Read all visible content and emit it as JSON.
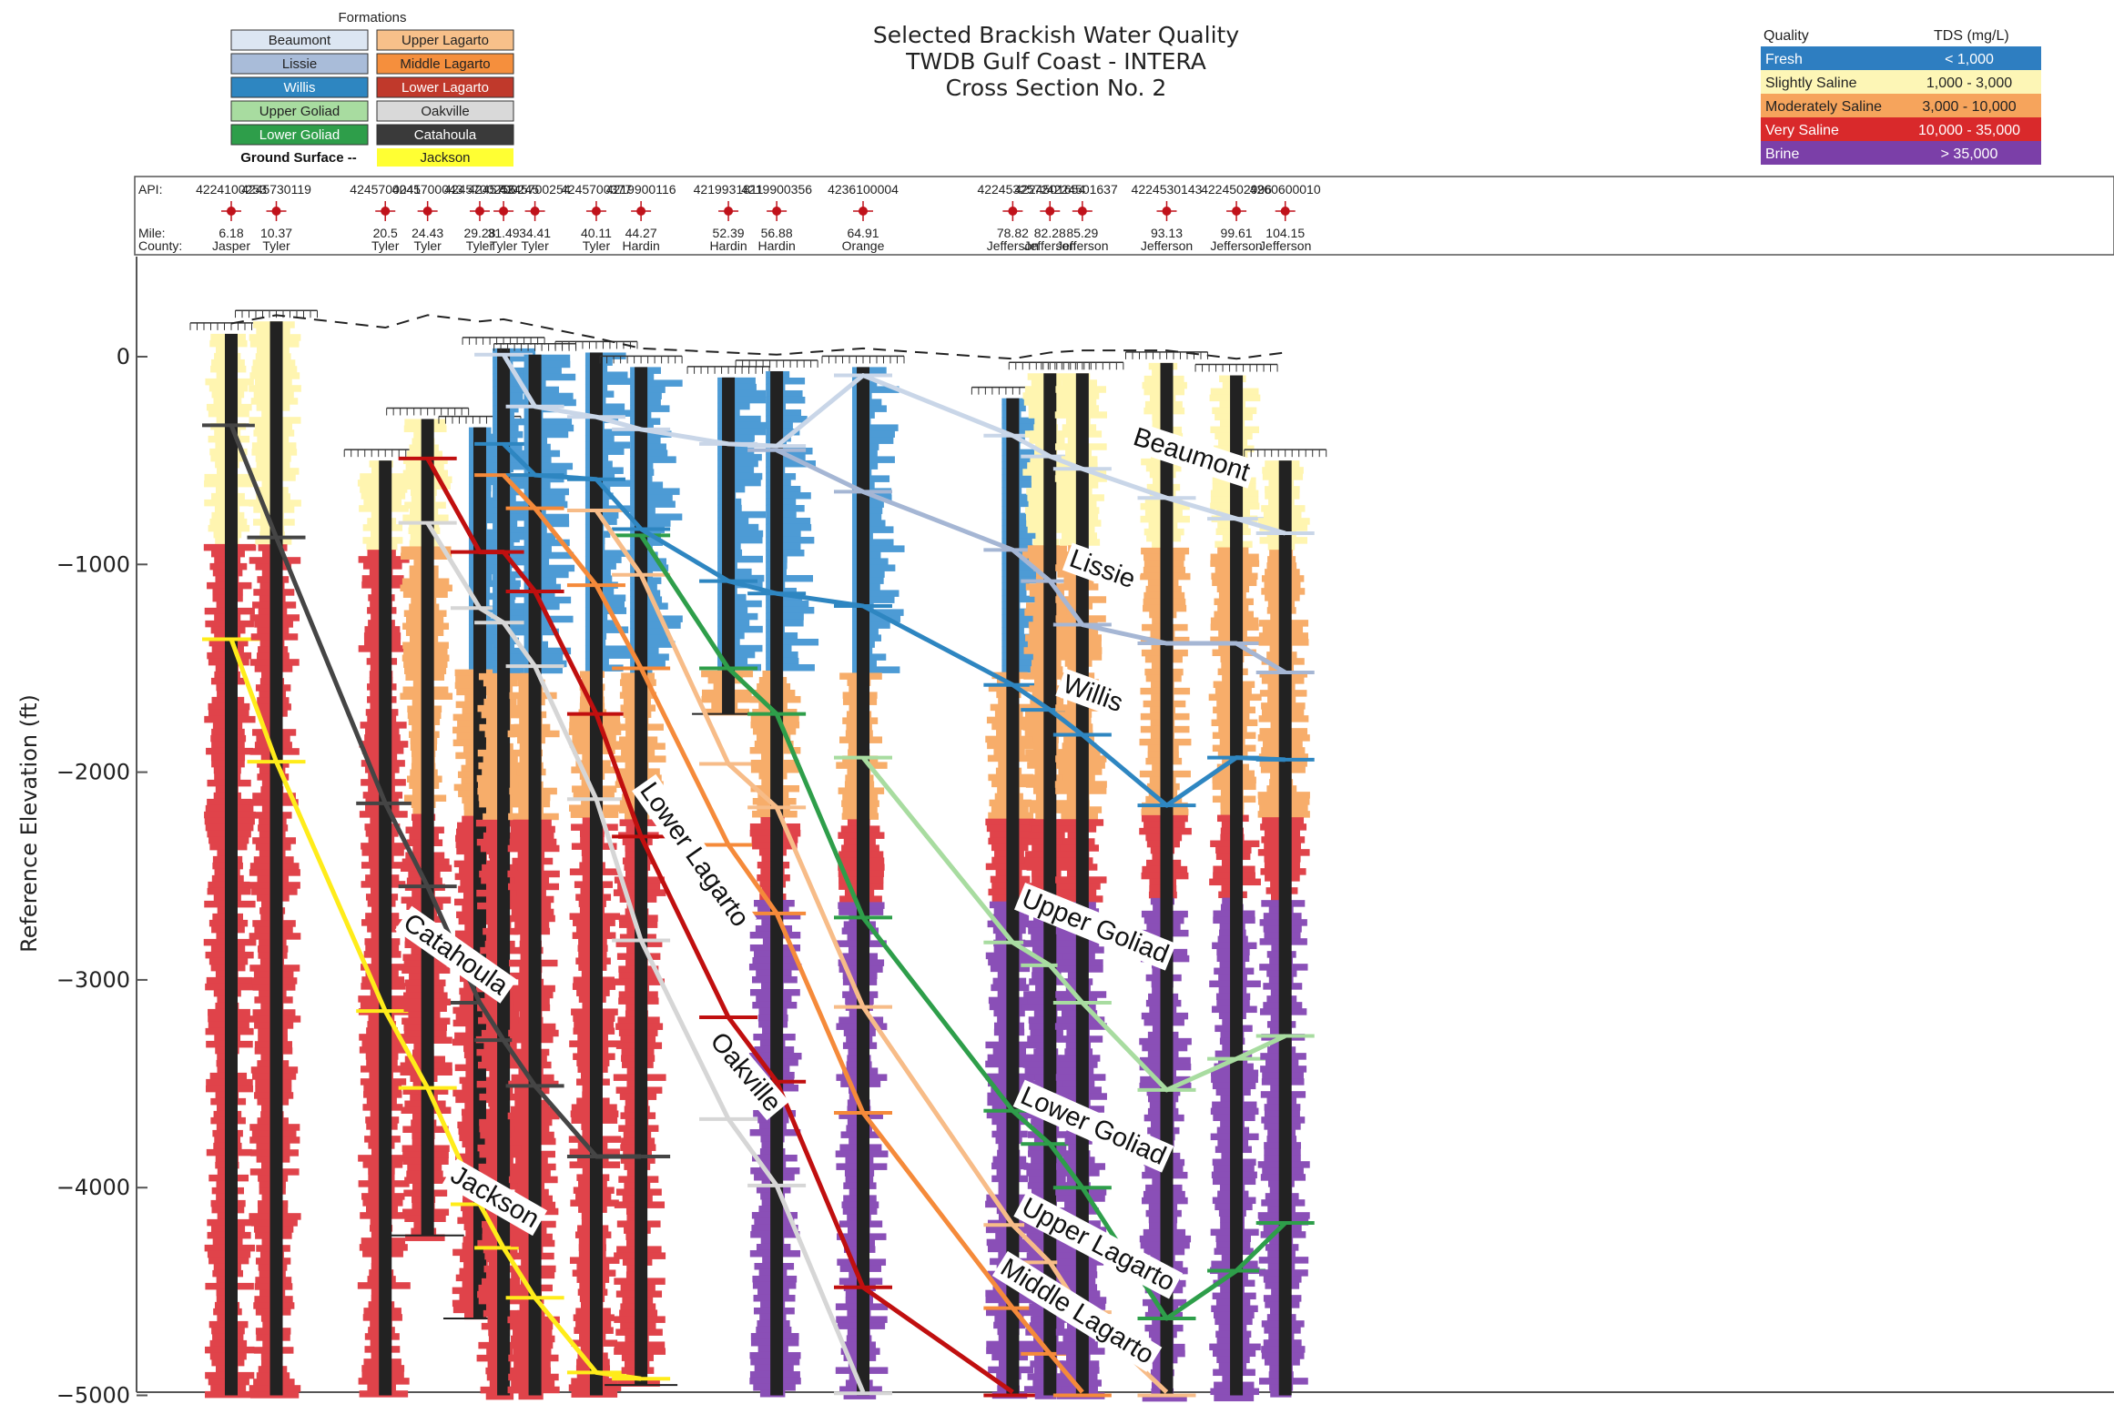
{
  "chart_data": {
    "type": "line",
    "title": [
      "Selected Brackish Water Quality",
      "TWDB Gulf Coast - INTERA",
      "Cross Section No. 2"
    ],
    "ylabel": "Reference Elevation (ft)",
    "ylim": [
      -5000,
      650
    ],
    "yticks": [
      0,
      -1000,
      -2000,
      -3000,
      -4000,
      -5000
    ],
    "ytick_labels": [
      "0",
      "−1000",
      "−2000",
      "−3000",
      "−4000",
      "−5000"
    ],
    "grid": false,
    "header_labels": {
      "api": "API:",
      "mile": "Mile:",
      "county": "County:"
    },
    "wells": [
      {
        "api": "4224100253",
        "mile": "6.18",
        "county": "Jasper",
        "top": 110,
        "bottom": -5000
      },
      {
        "api": "4245730119",
        "mile": "10.37",
        "county": "Tyler",
        "top": 170,
        "bottom": -5000
      },
      {
        "api": "4245700041",
        "mile": "20.5",
        "county": "Tyler",
        "top": -500,
        "bottom": -5000
      },
      {
        "api": "4245700043",
        "mile": "24.43",
        "county": "Tyler",
        "top": -300,
        "bottom": -4230
      },
      {
        "api": "4245700256",
        "mile": "29.28",
        "county": "Tyler",
        "top": -340,
        "bottom": -4630
      },
      {
        "api": "4245700245",
        "mile": "31.49",
        "county": "Tyler",
        "top": 40,
        "bottom": -5000
      },
      {
        "api": "4245700254",
        "mile": "34.41",
        "county": "Tyler",
        "top": 10,
        "bottom": -5000
      },
      {
        "api": "4245700377",
        "mile": "40.11",
        "county": "Tyler",
        "top": 20,
        "bottom": -5000
      },
      {
        "api": "4219900116",
        "mile": "44.27",
        "county": "Hardin",
        "top": -50,
        "bottom": -4950
      },
      {
        "api": "4219931811",
        "mile": "52.39",
        "county": "Hardin",
        "top": -100,
        "bottom": -1720
      },
      {
        "api": "4219900356",
        "mile": "56.88",
        "county": "Hardin",
        "top": -70,
        "bottom": -5000
      },
      {
        "api": "4236100004",
        "mile": "64.91",
        "county": "Orange",
        "top": -50,
        "bottom": -5000
      },
      {
        "api": "4224532572",
        "mile": "78.82",
        "county": "Jefferson",
        "top": -200,
        "bottom": -5000
      },
      {
        "api": "4224501654",
        "mile": "82.28",
        "county": "Jefferson",
        "top": -80,
        "bottom": -5000
      },
      {
        "api": "4224501637",
        "mile": "85.29",
        "county": "Jefferson",
        "top": -80,
        "bottom": -5000
      },
      {
        "api": "4224530143",
        "mile": "93.13",
        "county": "Jefferson",
        "top": -30,
        "bottom": -5000
      },
      {
        "api": "4224502996",
        "mile": "99.61",
        "county": "Jefferson",
        "top": -90,
        "bottom": -5000
      },
      {
        "api": "4260600010",
        "mile": "104.15",
        "county": "Jefferson",
        "top": -500,
        "bottom": -5000
      }
    ],
    "ground_surface": [
      160,
      200,
      140,
      200,
      170,
      180,
      150,
      90,
      40,
      20,
      10,
      40,
      -10,
      20,
      30,
      30,
      -10,
      20
    ],
    "formations": [
      {
        "name": "Beaumont",
        "label": "Beaumont",
        "color": "#dce6f2",
        "line_color": "#c9d6e8",
        "tops": [
          null,
          null,
          null,
          null,
          null,
          10,
          -240,
          -290,
          -350,
          -420,
          -430,
          -90,
          -380,
          -480,
          -540,
          -680,
          -780,
          -850
        ]
      },
      {
        "name": "Lissie",
        "label": "Lissie",
        "color": "#a9bcd9",
        "line_color": "#a5b6d4",
        "tops": [
          null,
          null,
          null,
          null,
          null,
          null,
          null,
          null,
          null,
          null,
          -450,
          -650,
          -930,
          -1080,
          -1290,
          -1380,
          -1380,
          -1520
        ]
      },
      {
        "name": "Willis",
        "label": "Willis",
        "color": "#2e86c1",
        "line_color": "#2e86c1",
        "tops": [
          null,
          null,
          null,
          null,
          null,
          -420,
          -570,
          -590,
          -830,
          -1080,
          -1140,
          -1200,
          -1580,
          -1700,
          -1820,
          -2160,
          -1930,
          -1940
        ]
      },
      {
        "name": "Upper Goliad",
        "label": "Upper Goliad",
        "color": "#a8dca0",
        "line_color": "#a8dca0",
        "tops": [
          null,
          null,
          null,
          null,
          null,
          null,
          null,
          null,
          null,
          null,
          null,
          -1930,
          -2820,
          -2930,
          -3110,
          -3530,
          -3380,
          -3270
        ]
      },
      {
        "name": "Lower Goliad",
        "label": "Lower Goliad",
        "color": "#2e9e4a",
        "line_color": "#2e9e4a",
        "tops": [
          null,
          null,
          null,
          null,
          null,
          null,
          null,
          null,
          -860,
          -1500,
          -1720,
          -2700,
          -3630,
          -3790,
          -4000,
          -4630,
          -4400,
          -4170
        ]
      },
      {
        "name": "Upper Lagarto",
        "label": "Upper Lagarto",
        "color": "#f7c08a",
        "line_color": "#f7bc88",
        "tops": [
          null,
          null,
          null,
          null,
          null,
          null,
          null,
          -740,
          -1050,
          -1960,
          -2170,
          -3130,
          -4180,
          -4360,
          -4600,
          -5000,
          null,
          null
        ]
      },
      {
        "name": "Middle Lagarto",
        "label": "Middle Lagarto",
        "color": "#f58f3d",
        "line_color": "#f58a3a",
        "tops": [
          null,
          null,
          null,
          null,
          null,
          -570,
          -730,
          -1100,
          -1500,
          -2350,
          -2680,
          -3640,
          -4580,
          -4800,
          -5000,
          null,
          null,
          null
        ]
      },
      {
        "name": "Lower Lagarto",
        "label": "Lower Lagarto",
        "color": "#c0392b",
        "line_color": "#c00f0f",
        "tops": [
          null,
          null,
          null,
          -490,
          -940,
          -940,
          -1130,
          -1720,
          -2310,
          -3180,
          -3490,
          -4480,
          -5000,
          null,
          null,
          null,
          null,
          null
        ]
      },
      {
        "name": "Oakville",
        "label": "Oakville",
        "color": "#d9d9d9",
        "line_color": "#d6d6d6",
        "tops": [
          null,
          null,
          null,
          -800,
          -1210,
          -1280,
          -1490,
          -2130,
          -2810,
          -3670,
          -3990,
          -4990,
          null,
          null,
          null,
          null,
          null,
          null
        ]
      },
      {
        "name": "Catahoula",
        "label": "Catahoula",
        "color": "#3a3a3a",
        "line_color": "#454545",
        "tops": [
          -330,
          -870,
          -2150,
          -2550,
          -3110,
          -3290,
          -3510,
          -3850,
          -3850,
          null,
          null,
          null,
          null,
          null,
          null,
          null,
          null,
          null
        ]
      },
      {
        "name": "Jackson",
        "label": "Jackson",
        "color": "#ffff33",
        "line_color": "#ffec1a",
        "tops": [
          -1360,
          -1950,
          -3150,
          -3520,
          -4080,
          -4290,
          -4530,
          -4890,
          -4920,
          null,
          null,
          null,
          null,
          null,
          null,
          null,
          null,
          null
        ]
      }
    ],
    "formation_labels": [
      {
        "text": "Beaumont",
        "mile": 95.2,
        "elev": -510,
        "rotate": 18
      },
      {
        "text": "Lissie",
        "mile": 86.9,
        "elev": -1060,
        "rotate": 20
      },
      {
        "text": "Willis",
        "mile": 86.0,
        "elev": -1660,
        "rotate": 20
      },
      {
        "text": "Upper Goliad",
        "mile": 86.2,
        "elev": -2780,
        "rotate": 22
      },
      {
        "text": "Lower Goliad",
        "mile": 86.0,
        "elev": -3740,
        "rotate": 24
      },
      {
        "text": "Upper Lagarto",
        "mile": 86.4,
        "elev": -4310,
        "rotate": 28
      },
      {
        "text": "Middle Lagarto",
        "mile": 84.4,
        "elev": -4630,
        "rotate": 32
      },
      {
        "text": "Lower Lagarto",
        "mile": 48.6,
        "elev": -2420,
        "rotate": 55
      },
      {
        "text": "Oakville",
        "mile": 53.4,
        "elev": -3470,
        "rotate": 50
      },
      {
        "text": "Catahoula",
        "mile": 26.6,
        "elev": -2910,
        "rotate": 35
      },
      {
        "text": "Jackson",
        "mile": 30.3,
        "elev": -4080,
        "rotate": 30
      }
    ]
  },
  "legend": {
    "formations_title": "Formations",
    "formation_rows": [
      [
        "Beaumont",
        "Upper Lagarto"
      ],
      [
        "Lissie",
        "Middle Lagarto"
      ],
      [
        "Willis",
        "Lower Lagarto"
      ],
      [
        "Upper Goliad",
        "Oakville"
      ],
      [
        "Lower Goliad",
        "Catahoula"
      ]
    ],
    "ground_surface_label": "Ground Surface --",
    "jackson_label": "Jackson",
    "quality_header": "Quality",
    "tds_header": "TDS (mg/L)",
    "quality_rows": [
      {
        "quality": "Fresh",
        "tds": "< 1,000",
        "color": "#2e7ec1",
        "text_color": "#ffffff"
      },
      {
        "quality": "Slightly Saline",
        "tds": "1,000 - 3,000",
        "color": "#fdf6b6",
        "text_color": "#222222"
      },
      {
        "quality": "Moderately Saline",
        "tds": "3,000 - 10,000",
        "color": "#f6a45c",
        "text_color": "#222222"
      },
      {
        "quality": "Very Saline",
        "tds": "10,000 - 35,000",
        "color": "#d9292b",
        "text_color": "#ffffff"
      },
      {
        "quality": "Brine",
        "tds": "> 35,000",
        "color": "#7b3fa8",
        "text_color": "#ffffff"
      }
    ]
  },
  "colors": {
    "log_black": "#222222",
    "fresh": "#4d9bd5",
    "slightly": "#fff5b0",
    "moderate": "#f7ad6a",
    "very": "#e0434a",
    "brine": "#8a4fb7",
    "well_marker": "#c0121b"
  }
}
